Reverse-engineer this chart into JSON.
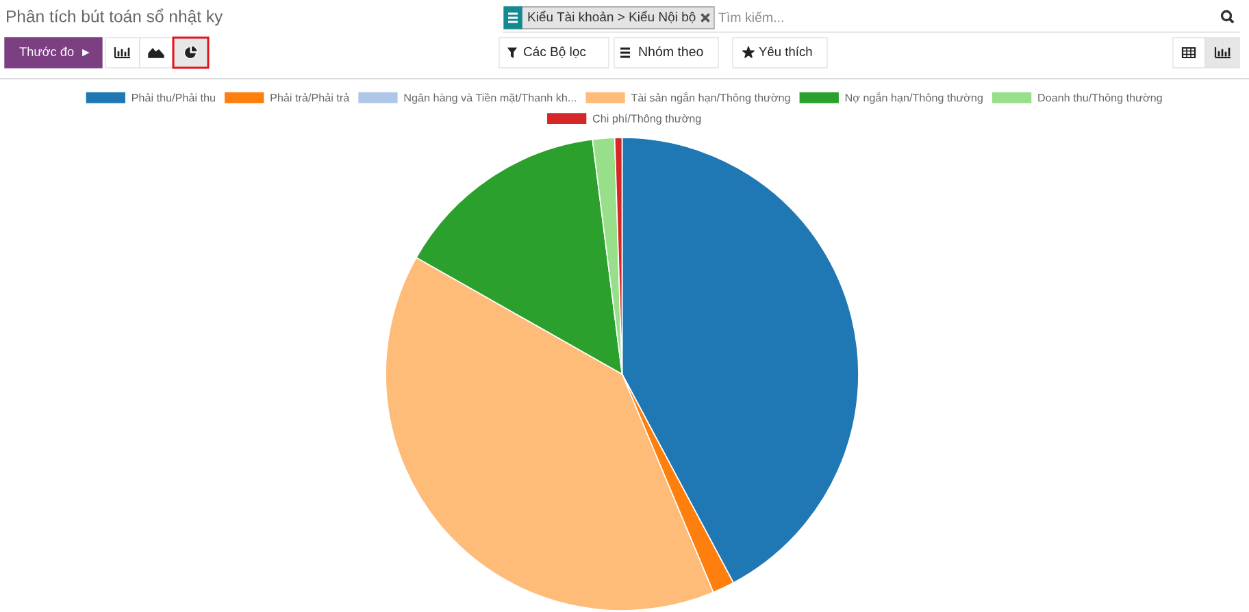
{
  "chart_data": {
    "type": "pie",
    "title": "Phân tích bút toán sổ nhật ky",
    "categories": [
      "Phải thu/Phải thu",
      "Phải trả/Phải trả",
      "Ngân hàng và Tiền mặt/Thanh kh...",
      "Tài sản ngắn hạn/Thông thường",
      "Nợ ngắn hạn/Thông thường",
      "Doanh thu/Thông thường",
      "Chi phí/Thông thường"
    ],
    "values": [
      42.2,
      1.5,
      0,
      39.5,
      14.8,
      1.5,
      0.5
    ],
    "colors": [
      "#1f77b4",
      "#ff7f0e",
      "#aec7e8",
      "#ffbb78",
      "#2ca02c",
      "#98df8a",
      "#d62728"
    ],
    "legend": "top",
    "annotations": [
      "Kiểu Tài khoản > Kiểu Nội bộ",
      "Tìm kiếm...",
      "Thước đo",
      "Các Bộ lọc",
      "Nhóm theo",
      "Yêu thích"
    ]
  }
}
